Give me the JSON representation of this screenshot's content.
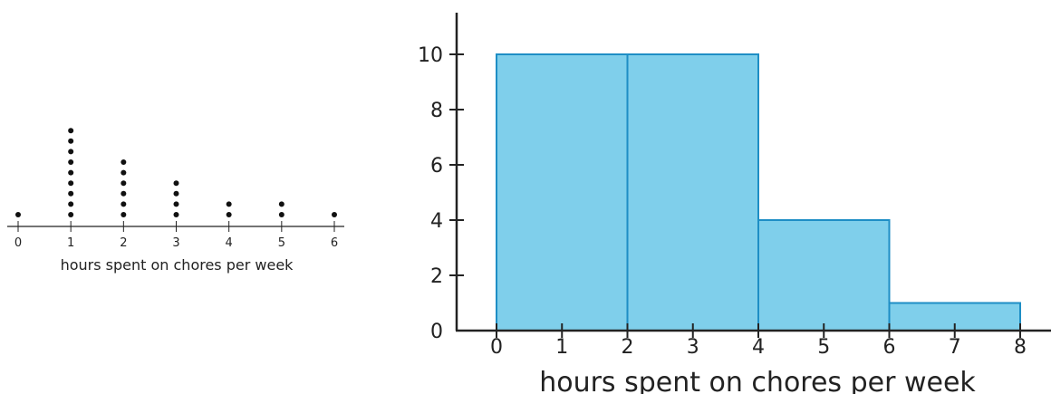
{
  "chart_data": [
    {
      "type": "dot-plot",
      "xlabel": "hours spent on chores per week",
      "ticks": [
        0,
        1,
        2,
        3,
        4,
        5,
        6
      ],
      "x": [
        0,
        1,
        2,
        3,
        4,
        5,
        6
      ],
      "counts": [
        1,
        9,
        6,
        4,
        2,
        2,
        1
      ],
      "xlim": [
        0,
        6
      ],
      "dot_color": "#111111"
    },
    {
      "type": "histogram",
      "xlabel": "hours spent on chores per week",
      "ylabel": "",
      "bins": [
        [
          0,
          2
        ],
        [
          2,
          4
        ],
        [
          4,
          6
        ],
        [
          6,
          8
        ]
      ],
      "values": [
        10,
        10,
        4,
        1
      ],
      "x_ticks": [
        0,
        1,
        2,
        3,
        4,
        5,
        6,
        7,
        8
      ],
      "y_ticks": [
        0,
        2,
        4,
        6,
        8,
        10
      ],
      "xlim": [
        0,
        8
      ],
      "ylim": [
        0,
        11.5
      ],
      "grid": false,
      "bar_fill": "#7fcfeb",
      "bar_stroke": "#1e8ec5"
    }
  ]
}
